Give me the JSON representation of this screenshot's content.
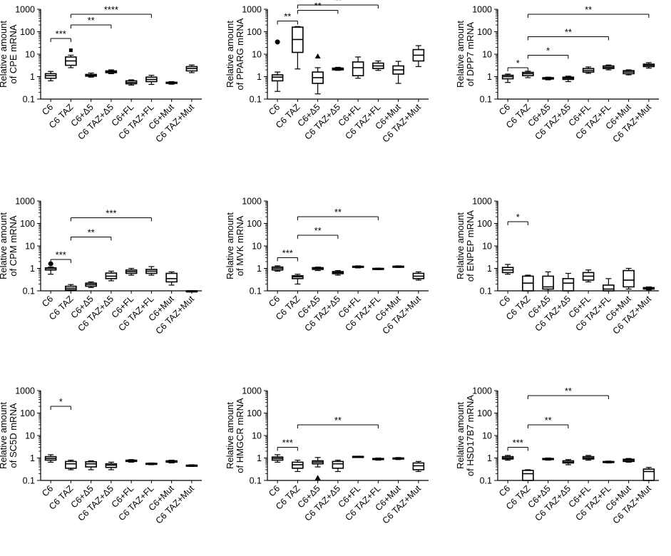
{
  "chart_data": [
    {
      "type": "box",
      "scale": "log",
      "ylabel": [
        "Relative amount",
        "of CPE mRNA"
      ],
      "ylim": [
        0.1,
        1000
      ],
      "yticks": [
        "0.1",
        "1",
        "10",
        "100",
        "1000"
      ],
      "categories": [
        "C6",
        "C6 TAZ",
        "C6+Δ5",
        "C6 TAZ+Δ5",
        "C6+FL",
        "C6 TAZ+FL",
        "C6+Mut",
        "C6 TAZ+Mut"
      ],
      "boxes": [
        {
          "min": 0.65,
          "q1": 0.85,
          "median": 1.1,
          "q3": 1.35,
          "max": 1.7
        },
        {
          "min": 2.5,
          "q1": 3.2,
          "median": 5.0,
          "q3": 7.5,
          "max": 9.0
        },
        {
          "min": 0.95,
          "q1": 1.05,
          "median": 1.15,
          "q3": 1.25,
          "max": 1.45
        },
        {
          "min": 1.35,
          "q1": 1.5,
          "median": 1.65,
          "q3": 1.8,
          "max": 2.0
        },
        {
          "min": 0.42,
          "q1": 0.48,
          "median": 0.55,
          "q3": 0.65,
          "max": 0.72
        },
        {
          "min": 0.45,
          "q1": 0.6,
          "median": 0.75,
          "q3": 0.95,
          "max": 1.15
        },
        {
          "min": 0.46,
          "q1": 0.5,
          "median": 0.53,
          "q3": 0.56,
          "max": 0.6
        },
        {
          "min": 1.5,
          "q1": 1.8,
          "median": 2.3,
          "q3": 2.8,
          "max": 3.3
        }
      ],
      "outliers": [
        {
          "group": 1,
          "value": 15,
          "marker": "square"
        }
      ],
      "significance": [
        {
          "from": 0,
          "to": 1,
          "y": 50,
          "label": "***"
        },
        {
          "from": 1,
          "to": 3,
          "y": 200,
          "label": "**"
        },
        {
          "from": 1,
          "to": 5,
          "y": 600,
          "label": "****"
        }
      ]
    },
    {
      "type": "box",
      "scale": "log",
      "ylabel": [
        "Relative amount",
        "of PPARG mRNA"
      ],
      "ylim": [
        0.1,
        1000
      ],
      "yticks": [
        "0.1",
        "1",
        "10",
        "100",
        "1000"
      ],
      "categories": [
        "C6",
        "C6 TAZ",
        "C6+Δ5",
        "C6 TAZ+Δ5",
        "C6+FL",
        "C6 TAZ+FL",
        "C6+Mut",
        "C6 TAZ+Mut"
      ],
      "boxes": [
        {
          "min": 0.22,
          "q1": 0.65,
          "median": 0.95,
          "q3": 1.2,
          "max": 1.6
        },
        {
          "min": 2.2,
          "q1": 12,
          "median": 45,
          "q3": 160,
          "max": 170
        },
        {
          "min": 0.17,
          "q1": 0.5,
          "median": 0.9,
          "q3": 1.6,
          "max": 2.5
        },
        {
          "min": 1.9,
          "q1": 2.0,
          "median": 2.2,
          "q3": 2.4,
          "max": 2.6
        },
        {
          "min": 0.85,
          "q1": 1.1,
          "median": 2.5,
          "q3": 4.5,
          "max": 7.5
        },
        {
          "min": 1.9,
          "q1": 2.3,
          "median": 3.0,
          "q3": 4.0,
          "max": 5.0
        },
        {
          "min": 0.5,
          "q1": 1.3,
          "median": 2.0,
          "q3": 3.0,
          "max": 4.8
        },
        {
          "min": 2.8,
          "q1": 5.0,
          "median": 9.0,
          "q3": 16,
          "max": 24
        }
      ],
      "outliers": [
        {
          "group": 0,
          "value": 35,
          "marker": "circle"
        },
        {
          "group": 2,
          "value": 8,
          "marker": "triangle"
        }
      ],
      "significance": [
        {
          "from": 0,
          "to": 1,
          "y": 300,
          "label": "**"
        },
        {
          "from": 1,
          "to": 3,
          "y": 900,
          "label": "**"
        },
        {
          "from": 1,
          "to": 5,
          "y": 3500,
          "label": "**"
        }
      ]
    },
    {
      "type": "box",
      "scale": "log",
      "ylabel": [
        "Relative amount",
        "of DPP7 mRNA"
      ],
      "ylim": [
        0.1,
        1000
      ],
      "yticks": [
        "0.1",
        "1",
        "10",
        "100",
        "1000"
      ],
      "categories": [
        "C6",
        "C6 TAZ",
        "C6+Δ5",
        "C6 TAZ+Δ5",
        "C6+FL",
        "C6 TAZ+FL",
        "C6+Mut",
        "C6 TAZ+Mut"
      ],
      "boxes": [
        {
          "min": 0.55,
          "q1": 0.8,
          "median": 1.0,
          "q3": 1.15,
          "max": 1.3
        },
        {
          "min": 0.9,
          "q1": 1.1,
          "median": 1.35,
          "q3": 1.55,
          "max": 1.75
        },
        {
          "min": 0.72,
          "q1": 0.78,
          "median": 0.83,
          "q3": 0.9,
          "max": 0.95
        },
        {
          "min": 0.6,
          "q1": 0.75,
          "median": 0.85,
          "q3": 0.95,
          "max": 1.05
        },
        {
          "min": 1.4,
          "q1": 1.6,
          "median": 1.9,
          "q3": 2.3,
          "max": 2.7
        },
        {
          "min": 2.0,
          "q1": 2.3,
          "median": 2.6,
          "q3": 3.0,
          "max": 3.3
        },
        {
          "min": 1.2,
          "q1": 1.35,
          "median": 1.6,
          "q3": 1.85,
          "max": 2.0
        },
        {
          "min": 2.4,
          "q1": 2.8,
          "median": 3.2,
          "q3": 3.6,
          "max": 4.2
        }
      ],
      "outliers": [],
      "significance": [
        {
          "from": 0,
          "to": 1,
          "y": 2.5,
          "label": "*"
        },
        {
          "from": 1,
          "to": 3,
          "y": 9,
          "label": "*"
        },
        {
          "from": 1,
          "to": 5,
          "y": 60,
          "label": "**"
        },
        {
          "from": 1,
          "to": 7,
          "y": 600,
          "label": "**"
        }
      ]
    },
    {
      "type": "box",
      "scale": "log",
      "ylabel": [
        "Relative amount",
        "of CPM mRNA"
      ],
      "ylim": [
        0.1,
        1000
      ],
      "yticks": [
        "0.1",
        "1",
        "10",
        "100",
        "1000"
      ],
      "categories": [
        "C6",
        "C6 TAZ",
        "C6+Δ5",
        "C6 TAZ+Δ5",
        "C6+FL",
        "C6 TAZ+FL",
        "C6+Mut",
        "C6 TAZ+Mut"
      ],
      "boxes": [
        {
          "min": 0.55,
          "q1": 0.85,
          "median": 1.0,
          "q3": 1.05,
          "max": 1.15
        },
        {
          "min": 0.1,
          "q1": 0.11,
          "median": 0.13,
          "q3": 0.16,
          "max": 0.19
        },
        {
          "min": 0.14,
          "q1": 0.16,
          "median": 0.19,
          "q3": 0.22,
          "max": 0.25
        },
        {
          "min": 0.28,
          "q1": 0.35,
          "median": 0.45,
          "q3": 0.62,
          "max": 0.75
        },
        {
          "min": 0.5,
          "q1": 0.6,
          "median": 0.72,
          "q3": 0.85,
          "max": 1.0
        },
        {
          "min": 0.5,
          "q1": 0.6,
          "median": 0.75,
          "q3": 0.9,
          "max": 1.2
        },
        {
          "min": 0.18,
          "q1": 0.25,
          "median": 0.35,
          "q3": 0.6,
          "max": 0.7
        },
        {
          "min": 0.1,
          "q1": 0.1,
          "median": 0.1,
          "q3": 0.1,
          "max": 0.1
        }
      ],
      "outliers": [
        {
          "group": 0,
          "value": 1.6,
          "marker": "circle"
        }
      ],
      "significance": [
        {
          "from": 0,
          "to": 1,
          "y": 2.5,
          "label": "***"
        },
        {
          "from": 1,
          "to": 3,
          "y": 25,
          "label": "**"
        },
        {
          "from": 1,
          "to": 5,
          "y": 180,
          "label": "***"
        }
      ]
    },
    {
      "type": "box",
      "scale": "log",
      "ylabel": [
        "Relative amount",
        "of MVK mRNA"
      ],
      "ylim": [
        0.1,
        1000
      ],
      "yticks": [
        "0.1",
        "1",
        "10",
        "100",
        "1000"
      ],
      "categories": [
        "C6",
        "C6 TAZ",
        "C6+Δ5",
        "C6 TAZ+Δ5",
        "C6+FL",
        "C6 TAZ+FL",
        "C6+Mut",
        "C6 TAZ+Mut"
      ],
      "boxes": [
        {
          "min": 0.75,
          "q1": 0.85,
          "median": 1.0,
          "q3": 1.15,
          "max": 1.3
        },
        {
          "min": 0.2,
          "q1": 0.35,
          "median": 0.42,
          "q3": 0.47,
          "max": 0.55
        },
        {
          "min": 0.8,
          "q1": 0.9,
          "median": 1.0,
          "q3": 1.08,
          "max": 1.15
        },
        {
          "min": 0.5,
          "q1": 0.58,
          "median": 0.65,
          "q3": 0.72,
          "max": 0.8
        },
        {
          "min": 1.05,
          "q1": 1.12,
          "median": 1.18,
          "q3": 1.24,
          "max": 1.3
        },
        {
          "min": 0.88,
          "q1": 0.92,
          "median": 0.96,
          "q3": 1.0,
          "max": 1.03
        },
        {
          "min": 1.1,
          "q1": 1.15,
          "median": 1.2,
          "q3": 1.25,
          "max": 1.3
        },
        {
          "min": 0.3,
          "q1": 0.35,
          "median": 0.45,
          "q3": 0.6,
          "max": 0.7
        }
      ],
      "outliers": [],
      "significance": [
        {
          "from": 0,
          "to": 1,
          "y": 3,
          "label": "***"
        },
        {
          "from": 1,
          "to": 3,
          "y": 30,
          "label": "**"
        },
        {
          "from": 1,
          "to": 5,
          "y": 200,
          "label": "**"
        }
      ]
    },
    {
      "type": "box",
      "scale": "log",
      "ylabel": [
        "Relative amount",
        "of ENPEP mRNA"
      ],
      "ylim": [
        0.1,
        1000
      ],
      "yticks": [
        "0.1",
        "1",
        "10",
        "100",
        "1000"
      ],
      "categories": [
        "C6",
        "C6 TAZ",
        "C6+Δ5",
        "C6 TAZ+Δ5",
        "C6+FL",
        "C6 TAZ+FL",
        "C6+Mut",
        "C6 TAZ+Mut"
      ],
      "boxes": [
        {
          "min": 0.55,
          "q1": 0.65,
          "median": 0.85,
          "q3": 1.1,
          "max": 1.5
        },
        {
          "min": 0.1,
          "q1": 0.1,
          "median": 0.22,
          "q3": 0.45,
          "max": 0.5
        },
        {
          "min": 0.1,
          "q1": 0.12,
          "median": 0.15,
          "q3": 0.45,
          "max": 0.7
        },
        {
          "min": 0.1,
          "q1": 0.1,
          "median": 0.22,
          "q3": 0.35,
          "max": 0.6
        },
        {
          "min": 0.25,
          "q1": 0.3,
          "median": 0.45,
          "q3": 0.65,
          "max": 0.85
        },
        {
          "min": 0.1,
          "q1": 0.1,
          "median": 0.12,
          "q3": 0.18,
          "max": 0.35
        },
        {
          "min": 0.12,
          "q1": 0.15,
          "median": 0.3,
          "q3": 0.8,
          "max": 1.0
        },
        {
          "min": 0.11,
          "q1": 0.12,
          "median": 0.13,
          "q3": 0.14,
          "max": 0.15
        }
      ],
      "outliers": [],
      "significance": [
        {
          "from": 0,
          "to": 1,
          "y": 120,
          "label": "*"
        }
      ]
    },
    {
      "type": "box",
      "scale": "log",
      "ylabel": [
        "Relative amount",
        "of SC5D mRNA"
      ],
      "ylim": [
        0.1,
        1000
      ],
      "yticks": [
        "0.1",
        "1",
        "10",
        "100",
        "1000"
      ],
      "categories": [
        "C6",
        "C6 TAZ",
        "C6+Δ5",
        "C6 TAZ+Δ5",
        "C6+FL",
        "C6 TAZ+FL",
        "C6+Mut",
        "C6 TAZ+Mut"
      ],
      "boxes": [
        {
          "min": 0.65,
          "q1": 0.8,
          "median": 0.95,
          "q3": 1.15,
          "max": 1.4
        },
        {
          "min": 0.3,
          "q1": 0.35,
          "median": 0.55,
          "q3": 0.7,
          "max": 0.8
        },
        {
          "min": 0.3,
          "q1": 0.4,
          "median": 0.55,
          "q3": 0.68,
          "max": 0.75
        },
        {
          "min": 0.3,
          "q1": 0.38,
          "median": 0.48,
          "q3": 0.55,
          "max": 0.65
        },
        {
          "min": 0.65,
          "q1": 0.7,
          "median": 0.75,
          "q3": 0.8,
          "max": 0.85
        },
        {
          "min": 0.5,
          "q1": 0.52,
          "median": 0.55,
          "q3": 0.58,
          "max": 0.6
        },
        {
          "min": 0.6,
          "q1": 0.65,
          "median": 0.7,
          "q3": 0.75,
          "max": 0.8
        },
        {
          "min": 0.42,
          "q1": 0.44,
          "median": 0.46,
          "q3": 0.48,
          "max": 0.5
        }
      ],
      "outliers": [],
      "significance": [
        {
          "from": 0,
          "to": 1,
          "y": 200,
          "label": "*"
        }
      ]
    },
    {
      "type": "box",
      "scale": "log",
      "ylabel": [
        "Relative amount",
        "of HMGCR mRNA"
      ],
      "ylim": [
        0.1,
        1000
      ],
      "yticks": [
        "0.1",
        "1",
        "10",
        "100",
        "1000"
      ],
      "categories": [
        "C6",
        "C6 TAZ",
        "C6+Δ5",
        "C6 TAZ+Δ5",
        "C6+FL",
        "C6 TAZ+FL",
        "C6+Mut",
        "C6 TAZ+Mut"
      ],
      "boxes": [
        {
          "min": 0.65,
          "q1": 0.8,
          "median": 0.95,
          "q3": 1.1,
          "max": 1.4
        },
        {
          "min": 0.25,
          "q1": 0.35,
          "median": 0.5,
          "q3": 0.65,
          "max": 0.8
        },
        {
          "min": 0.4,
          "q1": 0.55,
          "median": 0.65,
          "q3": 0.75,
          "max": 1.05
        },
        {
          "min": 0.25,
          "q1": 0.35,
          "median": 0.55,
          "q3": 0.7,
          "max": 0.8
        },
        {
          "min": 1.1,
          "q1": 1.12,
          "median": 1.15,
          "q3": 1.18,
          "max": 1.2
        },
        {
          "min": 0.8,
          "q1": 0.85,
          "median": 0.9,
          "q3": 0.95,
          "max": 1.0
        },
        {
          "min": 0.85,
          "q1": 0.9,
          "median": 0.95,
          "q3": 1.0,
          "max": 1.05
        },
        {
          "min": 0.25,
          "q1": 0.3,
          "median": 0.45,
          "q3": 0.6,
          "max": 0.7
        }
      ],
      "outliers": [
        {
          "group": 2,
          "value": 0.13,
          "marker": "triangle"
        }
      ],
      "significance": [
        {
          "from": 0,
          "to": 1,
          "y": 3,
          "label": "***"
        },
        {
          "from": 1,
          "to": 5,
          "y": 30,
          "label": "**"
        }
      ]
    },
    {
      "type": "box",
      "scale": "log",
      "ylabel": [
        "Relative amount",
        "of HSD17B7 mRNA"
      ],
      "ylim": [
        0.1,
        1000
      ],
      "yticks": [
        "0.1",
        "1",
        "10",
        "100",
        "1000"
      ],
      "categories": [
        "C6",
        "C6 TAZ",
        "C6+Δ5",
        "C6 TAZ+Δ5",
        "C6+FL",
        "C6 TAZ+FL",
        "C6+Mut",
        "C6 TAZ+Mut"
      ],
      "boxes": [
        {
          "min": 0.8,
          "q1": 0.9,
          "median": 1.0,
          "q3": 1.15,
          "max": 1.3
        },
        {
          "min": 0.1,
          "q1": 0.1,
          "median": 0.2,
          "q3": 0.28,
          "max": 0.3
        },
        {
          "min": 0.8,
          "q1": 0.85,
          "median": 0.9,
          "q3": 0.95,
          "max": 1.0
        },
        {
          "min": 0.5,
          "q1": 0.6,
          "median": 0.65,
          "q3": 0.75,
          "max": 0.85
        },
        {
          "min": 0.8,
          "q1": 0.9,
          "median": 1.0,
          "q3": 1.15,
          "max": 1.3
        },
        {
          "min": 0.6,
          "q1": 0.63,
          "median": 0.66,
          "q3": 0.7,
          "max": 0.73
        },
        {
          "min": 0.65,
          "q1": 0.7,
          "median": 0.78,
          "q3": 0.88,
          "max": 0.95
        },
        {
          "min": 0.1,
          "q1": 0.1,
          "median": 0.25,
          "q3": 0.32,
          "max": 0.38
        }
      ],
      "outliers": [],
      "significance": [
        {
          "from": 0,
          "to": 1,
          "y": 3,
          "label": "***"
        },
        {
          "from": 1,
          "to": 3,
          "y": 30,
          "label": "**"
        },
        {
          "from": 1,
          "to": 5,
          "y": 600,
          "label": "**"
        }
      ]
    }
  ]
}
